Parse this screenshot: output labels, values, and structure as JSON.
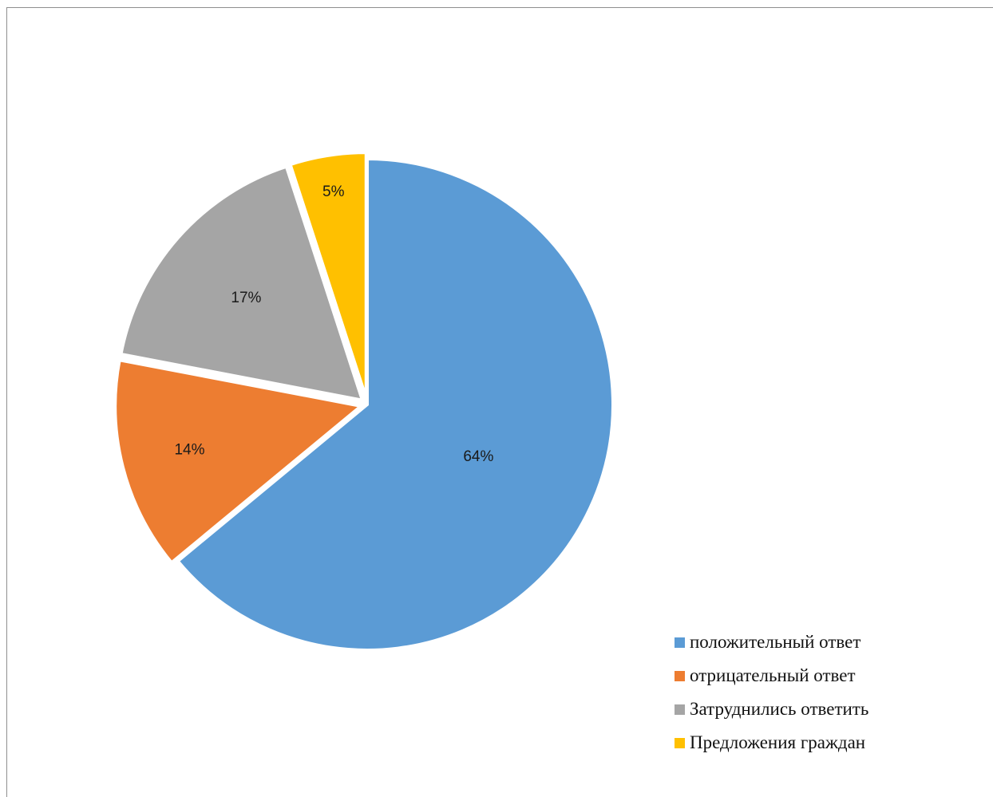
{
  "chart_data": {
    "type": "pie",
    "title": "",
    "categories": [
      "положительный ответ",
      "отрицательный ответ",
      "Затруднились ответить",
      "Предложения граждан"
    ],
    "values": [
      64,
      14,
      17,
      5
    ],
    "labels": [
      "64%",
      "14%",
      "17%",
      "5%"
    ],
    "colors": [
      "#5B9BD5",
      "#ED7D31",
      "#A5A5A5",
      "#FFC000"
    ],
    "start_angle": "12 o'clock, clockwise",
    "legend_position": "bottom-right"
  }
}
